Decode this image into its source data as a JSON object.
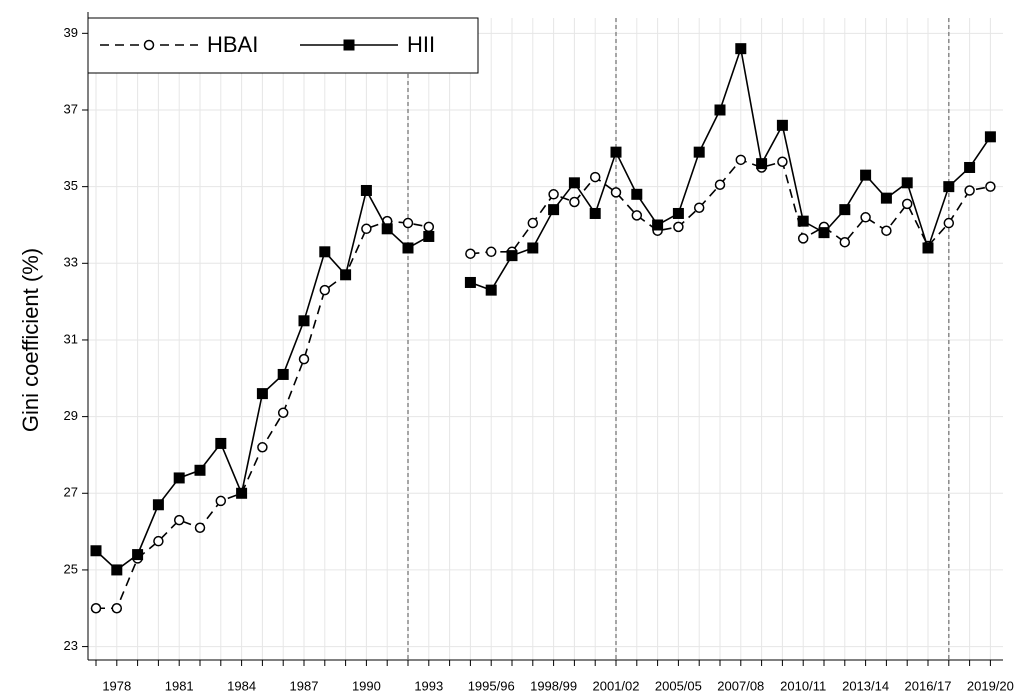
{
  "chart_data": {
    "type": "line",
    "y_label": "Gini coefficient (%)",
    "categories": [
      null,
      "1978",
      null,
      null,
      "1981",
      null,
      null,
      "1984",
      null,
      null,
      "1987",
      null,
      null,
      "1990",
      null,
      null,
      "1993",
      null,
      null,
      "1995/96",
      null,
      null,
      "1998/99",
      null,
      null,
      "2001/02",
      null,
      null,
      "2005/05",
      null,
      null,
      "2007/08",
      null,
      null,
      "2010/11",
      null,
      null,
      "2013/14",
      null,
      null,
      "2016/17",
      null,
      null,
      "2019/20"
    ],
    "series": [
      {
        "name": "HBAI",
        "color": "#000000",
        "line_style": "dashed",
        "marker": "circle",
        "values": [
          24.0,
          24.0,
          25.3,
          25.75,
          26.3,
          26.1,
          26.8,
          27.0,
          28.2,
          29.1,
          30.5,
          32.3,
          32.7,
          33.9,
          34.1,
          34.05,
          33.95,
          null,
          33.25,
          33.3,
          33.3,
          34.05,
          34.8,
          34.6,
          35.25,
          34.85,
          34.25,
          33.85,
          33.95,
          34.45,
          35.05,
          35.7,
          35.5,
          35.65,
          33.65,
          33.95,
          33.55,
          34.2,
          33.85,
          34.55,
          33.45,
          34.05,
          34.9,
          35.0
        ]
      },
      {
        "name": "HII",
        "color": "#000000",
        "line_style": "solid",
        "marker": "square",
        "values": [
          25.5,
          25.0,
          25.4,
          26.7,
          27.4,
          27.6,
          28.3,
          27.0,
          29.6,
          30.1,
          31.5,
          33.3,
          32.7,
          34.9,
          33.9,
          33.4,
          33.7,
          null,
          32.5,
          32.3,
          33.2,
          33.4,
          34.4,
          35.1,
          34.3,
          35.9,
          34.8,
          34.0,
          34.3,
          35.9,
          37.0,
          38.6,
          35.6,
          36.6,
          34.1,
          33.8,
          34.4,
          35.3,
          34.7,
          35.1,
          33.4,
          35.0,
          35.5,
          36.3
        ]
      }
    ],
    "reference_lines": [
      15,
      25,
      41
    ],
    "ylim": [
      22.65,
      39.4
    ],
    "yticks": [
      23,
      25,
      27,
      29,
      31,
      33,
      35,
      37,
      39
    ],
    "grid": true,
    "legend": "top-left"
  }
}
